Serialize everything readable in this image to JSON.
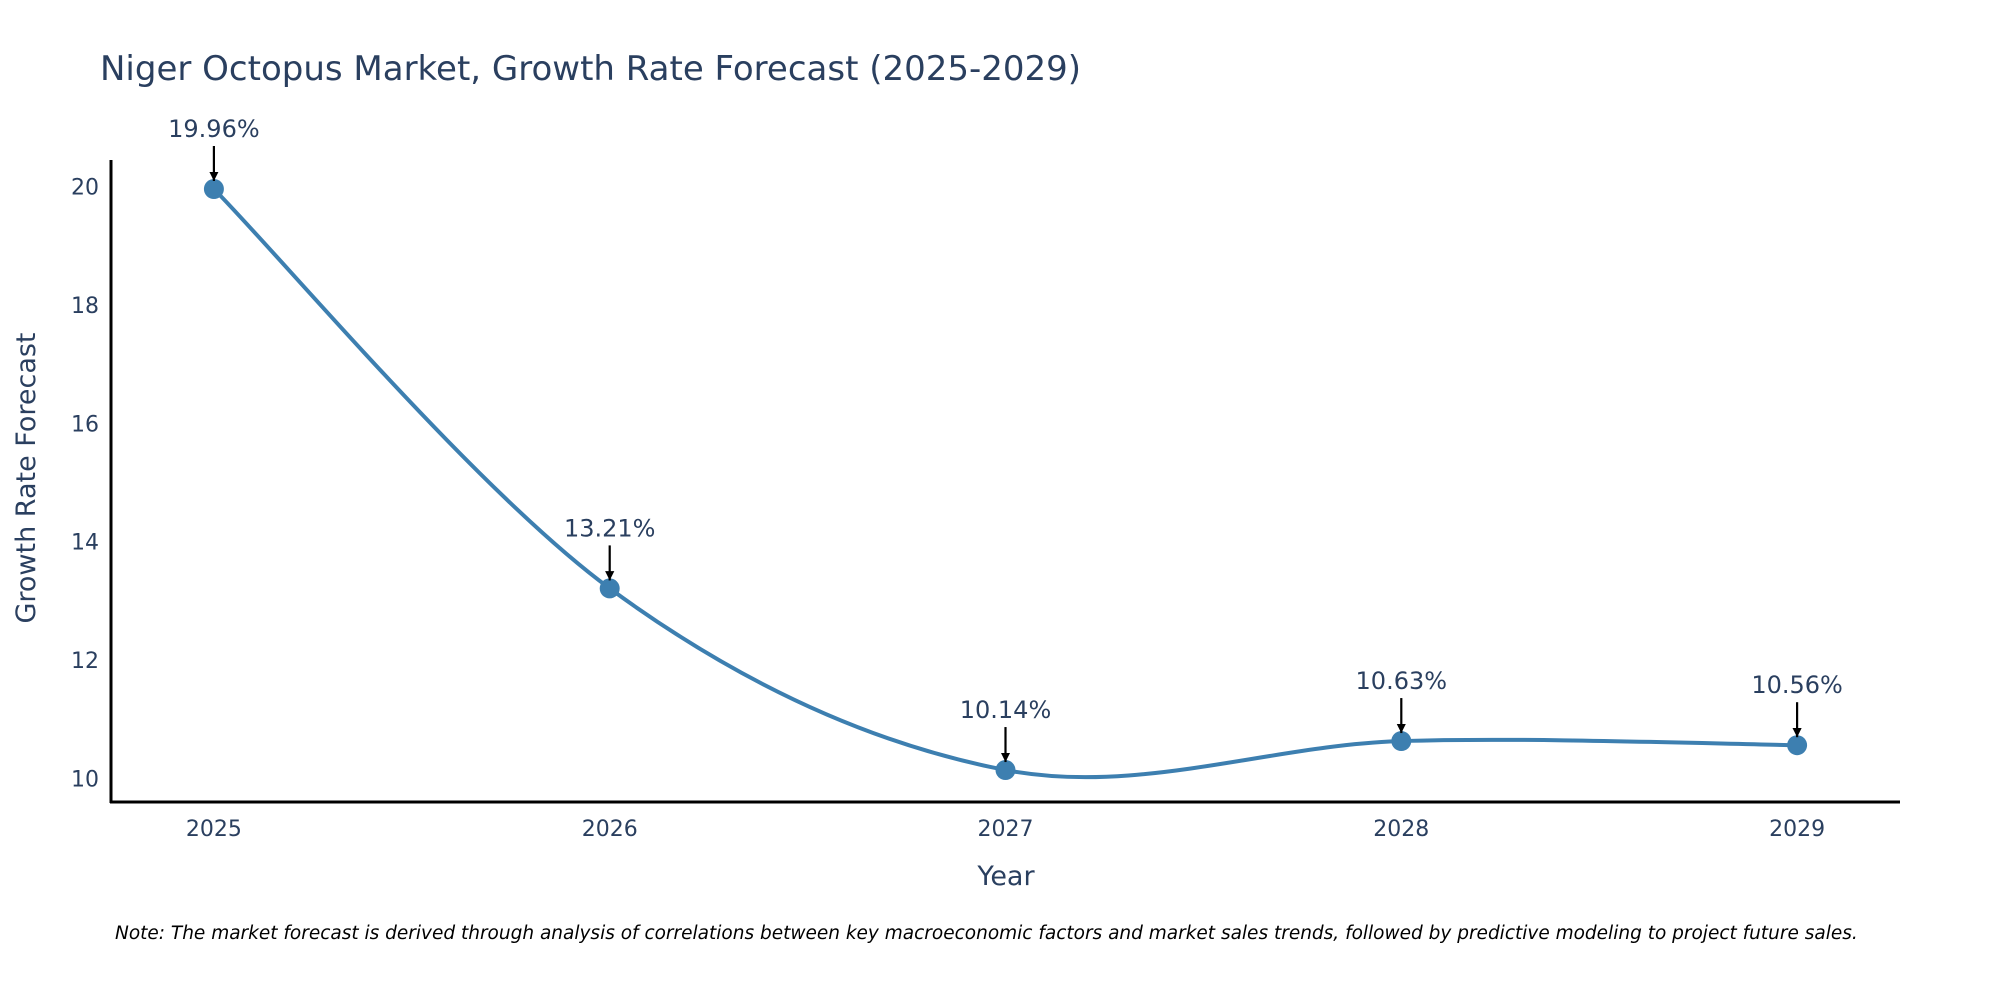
{
  "colors": {
    "line": "#3d7fb0",
    "marker": "#3d7fb0",
    "text": "#2a3f5f",
    "axis": "#000000",
    "arrow": "#000000"
  },
  "chart_data": {
    "type": "line",
    "title": "Niger Octopus Market, Growth Rate Forecast (2025-2029)",
    "xlabel": "Year",
    "ylabel": "Growth Rate Forecast",
    "categories": [
      "2025",
      "2026",
      "2027",
      "2028",
      "2029"
    ],
    "series": [
      {
        "name": "Growth Rate Forecast",
        "values": [
          19.96,
          13.21,
          10.14,
          10.63,
          10.56
        ],
        "labels": [
          "19.96%",
          "13.21%",
          "10.14%",
          "10.63%",
          "10.56%"
        ]
      }
    ],
    "y_ticks": [
      10,
      12,
      14,
      16,
      18,
      20
    ],
    "y_tick_labels": [
      "10",
      "12",
      "14",
      "16",
      "18",
      "20"
    ],
    "ylim": [
      9.6,
      20.45
    ],
    "x_range": [
      -0.26,
      4.26
    ],
    "grid": false,
    "line_shape": "spline"
  },
  "note": "Note: The market forecast is derived through analysis of correlations between key macroeconomic factors and market sales trends, followed by predictive modeling to project future sales."
}
